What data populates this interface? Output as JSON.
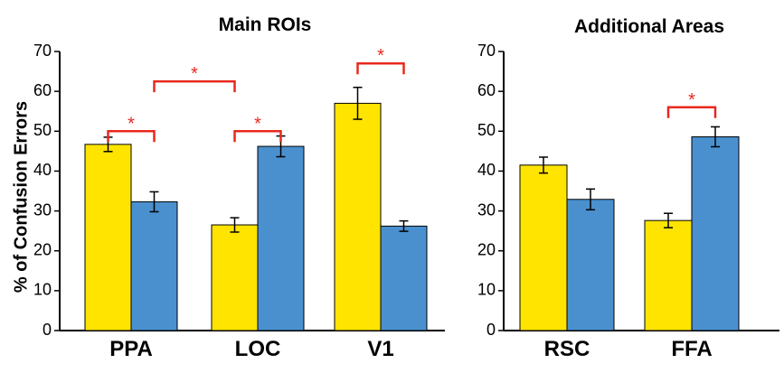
{
  "chart_data": [
    {
      "type": "bar",
      "title": "Main ROIs",
      "ylabel": "% of Confusion Errors",
      "ylim": [
        0,
        70
      ],
      "yticks": [
        "0",
        "10",
        "20",
        "30",
        "40",
        "50",
        "60",
        "70"
      ],
      "categories": [
        "PPA",
        "LOC",
        "V1"
      ],
      "series": [
        {
          "values": [
            46.7,
            26.5,
            57.0
          ],
          "errors": [
            1.8,
            1.8,
            4.0
          ]
        },
        {
          "values": [
            32.3,
            46.2,
            26.2
          ],
          "errors": [
            2.5,
            2.6,
            1.3
          ]
        }
      ],
      "significance": [
        {
          "from": [
            0,
            0
          ],
          "to": [
            0,
            1
          ],
          "level": 50.0,
          "label": "*"
        },
        {
          "from": [
            1,
            0
          ],
          "to": [
            1,
            1
          ],
          "level": 50.0,
          "label": "*"
        },
        {
          "from": [
            0,
            1
          ],
          "to": [
            1,
            0
          ],
          "level": 62.5,
          "label": "*"
        },
        {
          "from": [
            2,
            0
          ],
          "to": [
            2,
            1
          ],
          "level": 67.0,
          "label": "*"
        }
      ]
    },
    {
      "type": "bar",
      "title": "Additional Areas",
      "ylabel": "",
      "ylim": [
        0,
        70
      ],
      "yticks": [
        "0",
        "10",
        "20",
        "30",
        "40",
        "50",
        "60",
        "70"
      ],
      "categories": [
        "RSC",
        "FFA"
      ],
      "series": [
        {
          "values": [
            41.5,
            27.6
          ],
          "errors": [
            2.0,
            1.8
          ]
        },
        {
          "values": [
            32.9,
            48.6
          ],
          "errors": [
            2.6,
            2.5
          ]
        }
      ],
      "significance": [
        {
          "from": [
            1,
            0
          ],
          "to": [
            1,
            1
          ],
          "level": 56.0,
          "label": "*"
        }
      ]
    }
  ],
  "colors": {
    "series0": "#ffe400",
    "series1": "#4a90cf",
    "significance": "#e8281e"
  }
}
